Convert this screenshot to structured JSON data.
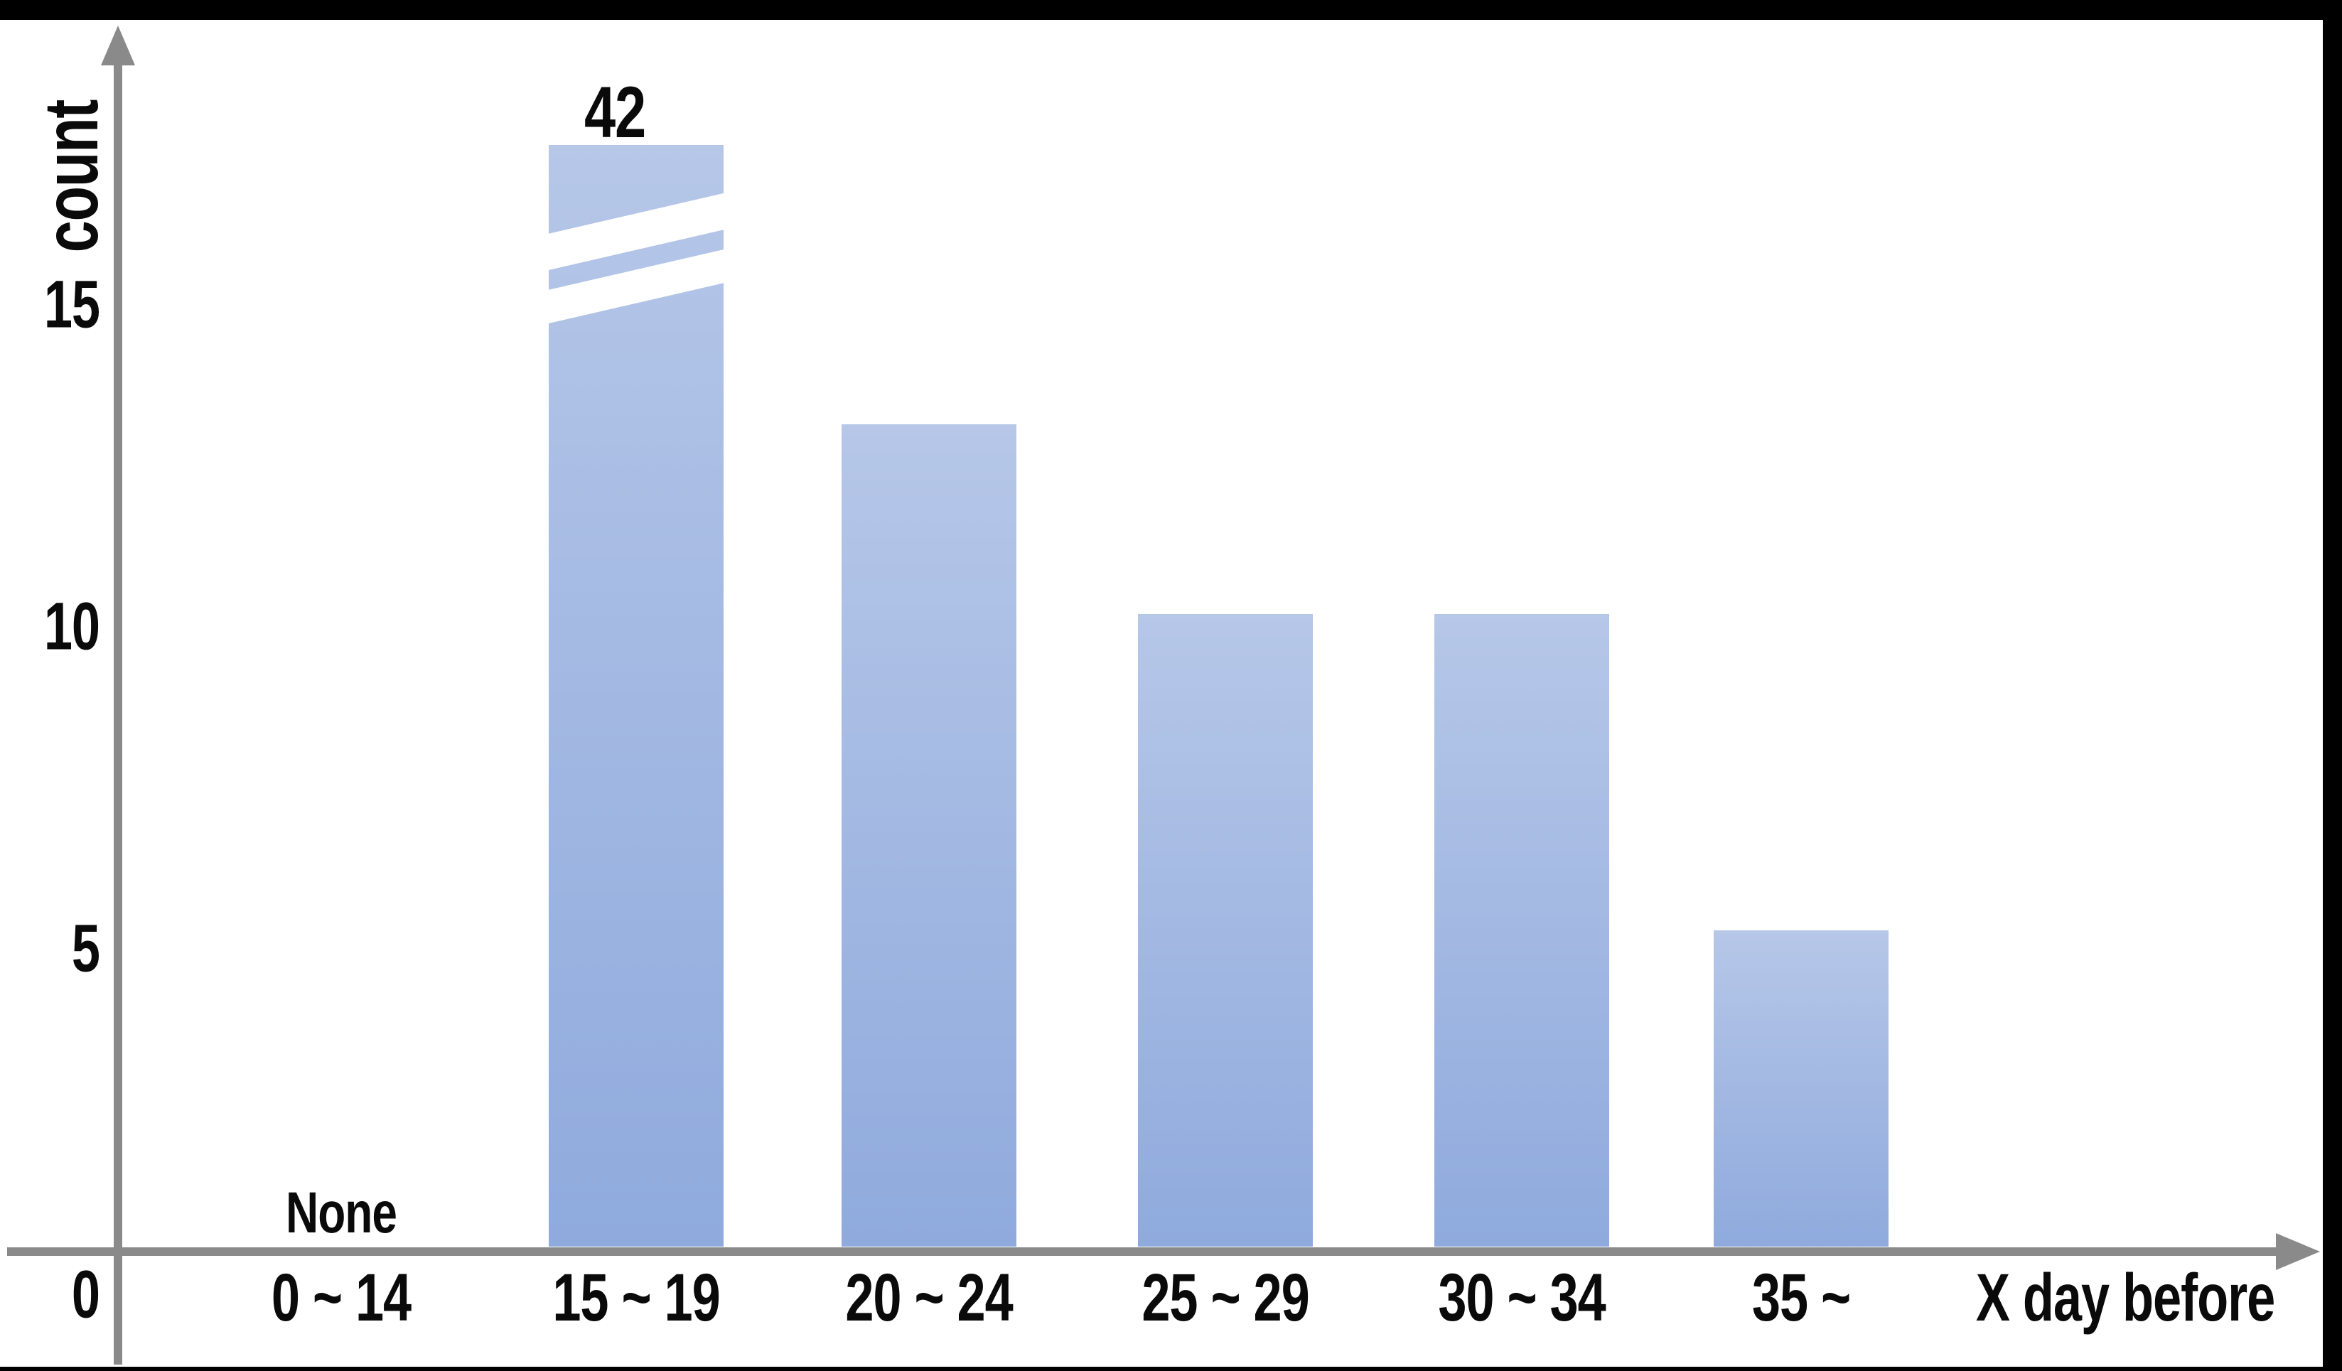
{
  "colors": {
    "background": "#ffffff",
    "border": "#000000",
    "axis": "#8a8a8a",
    "text": "#0a0a0a",
    "bar_gradient_top": "#b6c7e8",
    "bar_gradient_bottom": "#8faadd"
  },
  "chart_data": {
    "type": "bar",
    "title": "",
    "ylabel": "count",
    "xlabel": "X day before",
    "categories": [
      "0 ~ 14",
      "15 ~ 19",
      "20 ~ 24",
      "25 ~ 29",
      "30 ~ 34",
      "35 ~"
    ],
    "values": [
      null,
      42,
      13,
      10,
      10,
      5
    ],
    "none_label": "None",
    "broken_bar_category": "15 ~ 19",
    "broken_bar_label": "42",
    "axis_break_note": "bar for 15 ~ 19 truncated with double diagonal break marks",
    "yticks": [
      "0",
      "5",
      "10",
      "15"
    ],
    "ylim": [
      0,
      17
    ],
    "grid": false,
    "legend": false
  }
}
